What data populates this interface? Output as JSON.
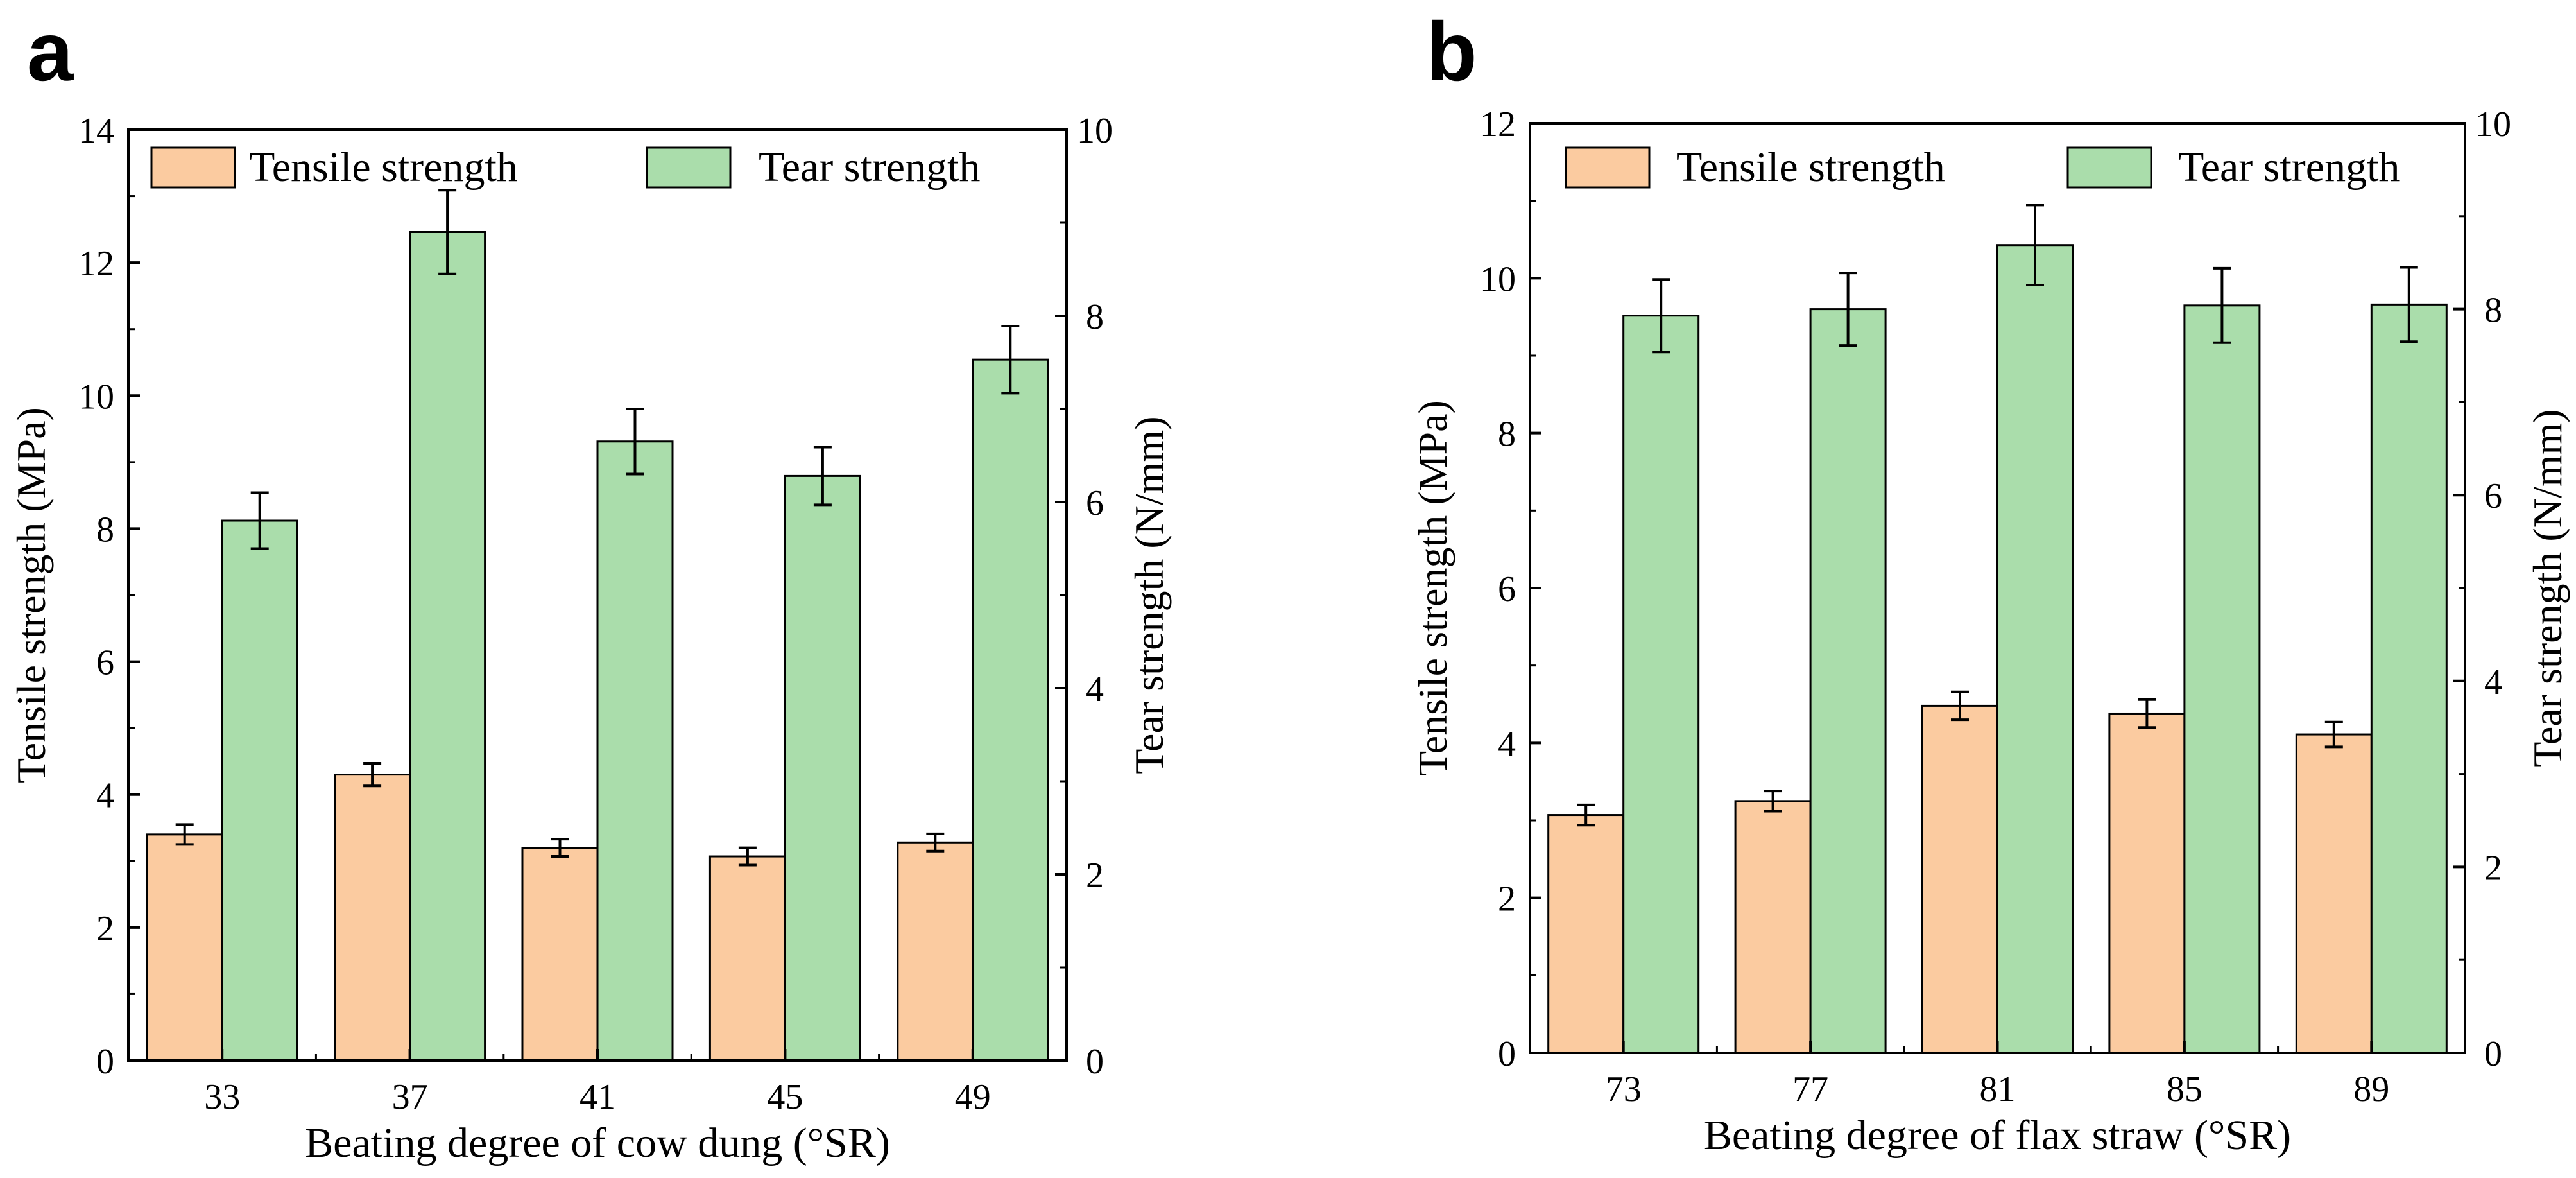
{
  "colors": {
    "tensile": "#FBCBA0",
    "tear": "#AADDAB",
    "stroke": "#000000"
  },
  "chart_data": [
    {
      "panel": "a",
      "type": "bar",
      "categories": [
        "33",
        "37",
        "41",
        "45",
        "49"
      ],
      "xlabel": "Beating degree of cow dung (°SR)",
      "ylabel_left": "Tensile strength (MPa)",
      "ylabel_right": "Tear strength (N/mm)",
      "ylim_left": [
        0,
        14
      ],
      "yticks_left": [
        0,
        2,
        4,
        6,
        8,
        10,
        12,
        14
      ],
      "ylim_right": [
        0,
        10
      ],
      "yticks_right": [
        0,
        2,
        4,
        6,
        8,
        10
      ],
      "legend_position": "top",
      "series": [
        {
          "name": "Tensile strength",
          "axis": "left",
          "values": [
            3.4,
            4.3,
            3.2,
            3.07,
            3.28
          ],
          "errors": [
            0.15,
            0.17,
            0.13,
            0.13,
            0.13
          ]
        },
        {
          "name": "Tear strength",
          "axis": "right",
          "values": [
            5.8,
            8.9,
            6.65,
            6.28,
            7.53
          ],
          "errors": [
            0.3,
            0.45,
            0.35,
            0.31,
            0.36
          ]
        }
      ]
    },
    {
      "panel": "b",
      "type": "bar",
      "categories": [
        "73",
        "77",
        "81",
        "85",
        "89"
      ],
      "xlabel": "Beating degree of flax straw (°SR)",
      "ylabel_left": "Tensile strength (MPa)",
      "ylabel_right": "Tear strength (N/mm)",
      "ylim_left": [
        0,
        12
      ],
      "yticks_left": [
        0,
        2,
        4,
        6,
        8,
        10,
        12
      ],
      "ylim_right": [
        0,
        10
      ],
      "yticks_right": [
        0,
        2,
        4,
        6,
        8,
        10
      ],
      "legend_position": "top",
      "series": [
        {
          "name": "Tensile strength",
          "axis": "left",
          "values": [
            3.07,
            3.25,
            4.48,
            4.38,
            4.11
          ],
          "errors": [
            0.13,
            0.13,
            0.18,
            0.18,
            0.16
          ]
        },
        {
          "name": "Tear strength",
          "axis": "right",
          "values": [
            7.93,
            8.0,
            8.69,
            8.04,
            8.05
          ],
          "errors": [
            0.39,
            0.39,
            0.43,
            0.4,
            0.4
          ]
        }
      ]
    }
  ]
}
